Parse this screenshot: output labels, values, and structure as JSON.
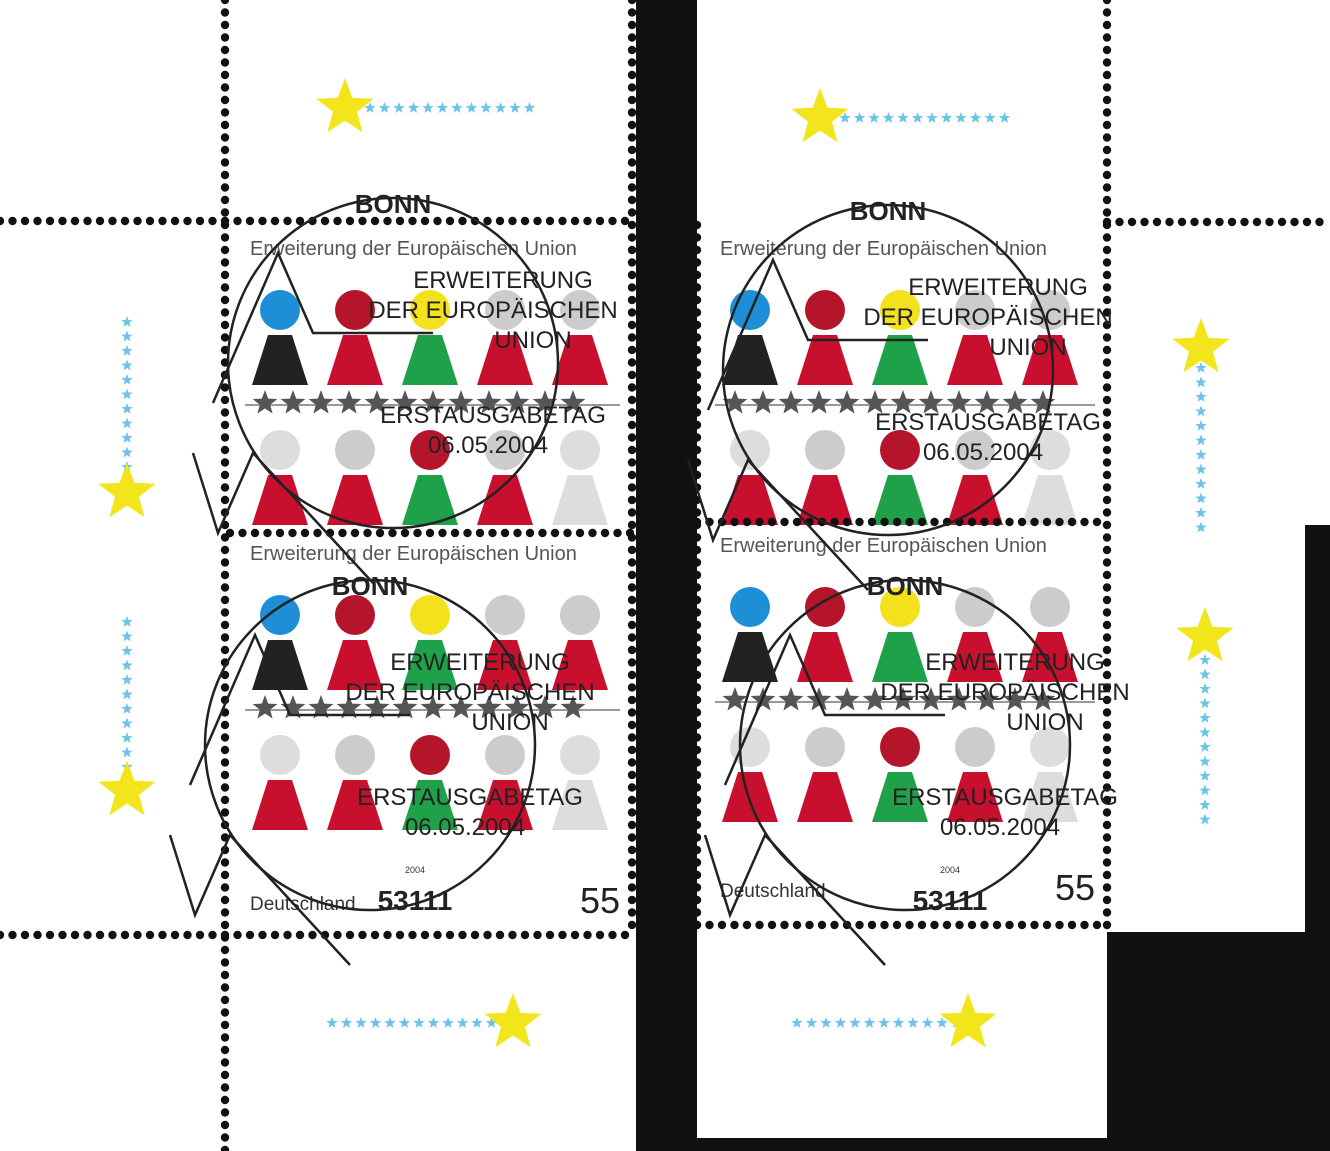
{
  "stamp": {
    "header": "Erweiterung der Europäischen Union",
    "country": "Deutschland",
    "value": "55",
    "year": "2004"
  },
  "postmark": {
    "city": "BONN",
    "line1": "ERWEITERUNG",
    "line2": "DER EUROPÄISCHEN",
    "line3": "UNION",
    "line4": "ERSTAUSGABETAG",
    "date": "06.05.2004",
    "postcode": "53111"
  },
  "colors": {
    "background": "#111111",
    "paper": "#ffffff",
    "eu_star_yellow": "#f2e51c",
    "small_star_blue": "#6cc4e8",
    "figure_red": "#c8102e",
    "figure_blue": "#1e8fd6",
    "figure_green": "#1fa14a",
    "figure_yellow": "#f3e21b",
    "postmark_ink": "#222222"
  }
}
